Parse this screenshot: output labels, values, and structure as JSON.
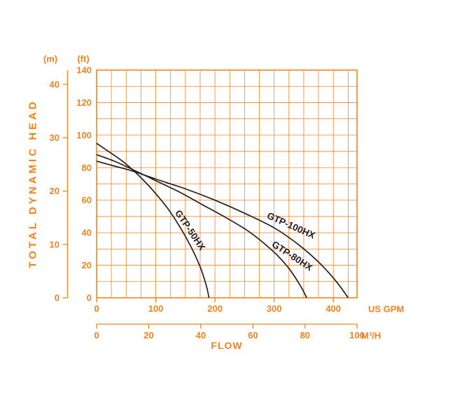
{
  "colors": {
    "accent": "#f5821f",
    "curve": "#231f20",
    "background": "#ffffff"
  },
  "chart_data": {
    "type": "line",
    "xlabel": "FLOW",
    "ylabel": "TOTAL DYNAMIC HEAD",
    "grid": true,
    "x_axis": {
      "primary_unit": "US GPM",
      "primary_ticks": [
        0,
        100,
        200,
        300,
        400
      ],
      "primary_range": [
        0,
        440
      ],
      "grid_step": 25,
      "secondary_unit": "M³/H",
      "secondary_ticks": [
        0,
        20,
        40,
        60,
        80,
        100
      ],
      "gpm_per_m3h": 4.403
    },
    "y_axis": {
      "primary_unit": "(ft)",
      "primary_ticks": [
        0,
        20,
        40,
        60,
        80,
        100,
        120,
        140
      ],
      "primary_range": [
        0,
        140
      ],
      "grid_step": 10,
      "secondary_unit": "(m)",
      "secondary_ticks": [
        0,
        10,
        20,
        30,
        40
      ],
      "ft_per_m": 3.2808
    },
    "series": [
      {
        "name": "GTP-50HX",
        "points_gpm_ft": [
          [
            0,
            95
          ],
          [
            20,
            90
          ],
          [
            40,
            85
          ],
          [
            60,
            79
          ],
          [
            80,
            72
          ],
          [
            100,
            64
          ],
          [
            120,
            55
          ],
          [
            140,
            44
          ],
          [
            160,
            31
          ],
          [
            175,
            19
          ],
          [
            185,
            8
          ],
          [
            190,
            0
          ]
        ]
      },
      {
        "name": "GTP-80HX",
        "points_gpm_ft": [
          [
            0,
            88
          ],
          [
            30,
            84
          ],
          [
            60,
            79
          ],
          [
            100,
            72
          ],
          [
            140,
            65
          ],
          [
            180,
            57
          ],
          [
            220,
            49
          ],
          [
            260,
            40
          ],
          [
            300,
            28
          ],
          [
            325,
            18
          ],
          [
            345,
            7
          ],
          [
            355,
            0
          ]
        ]
      },
      {
        "name": "GTP-100HX",
        "points_gpm_ft": [
          [
            0,
            84
          ],
          [
            30,
            81
          ],
          [
            60,
            78
          ],
          [
            100,
            73
          ],
          [
            150,
            67
          ],
          [
            200,
            60
          ],
          [
            250,
            52
          ],
          [
            300,
            43
          ],
          [
            340,
            33
          ],
          [
            375,
            22
          ],
          [
            405,
            10
          ],
          [
            425,
            0
          ]
        ]
      }
    ]
  }
}
